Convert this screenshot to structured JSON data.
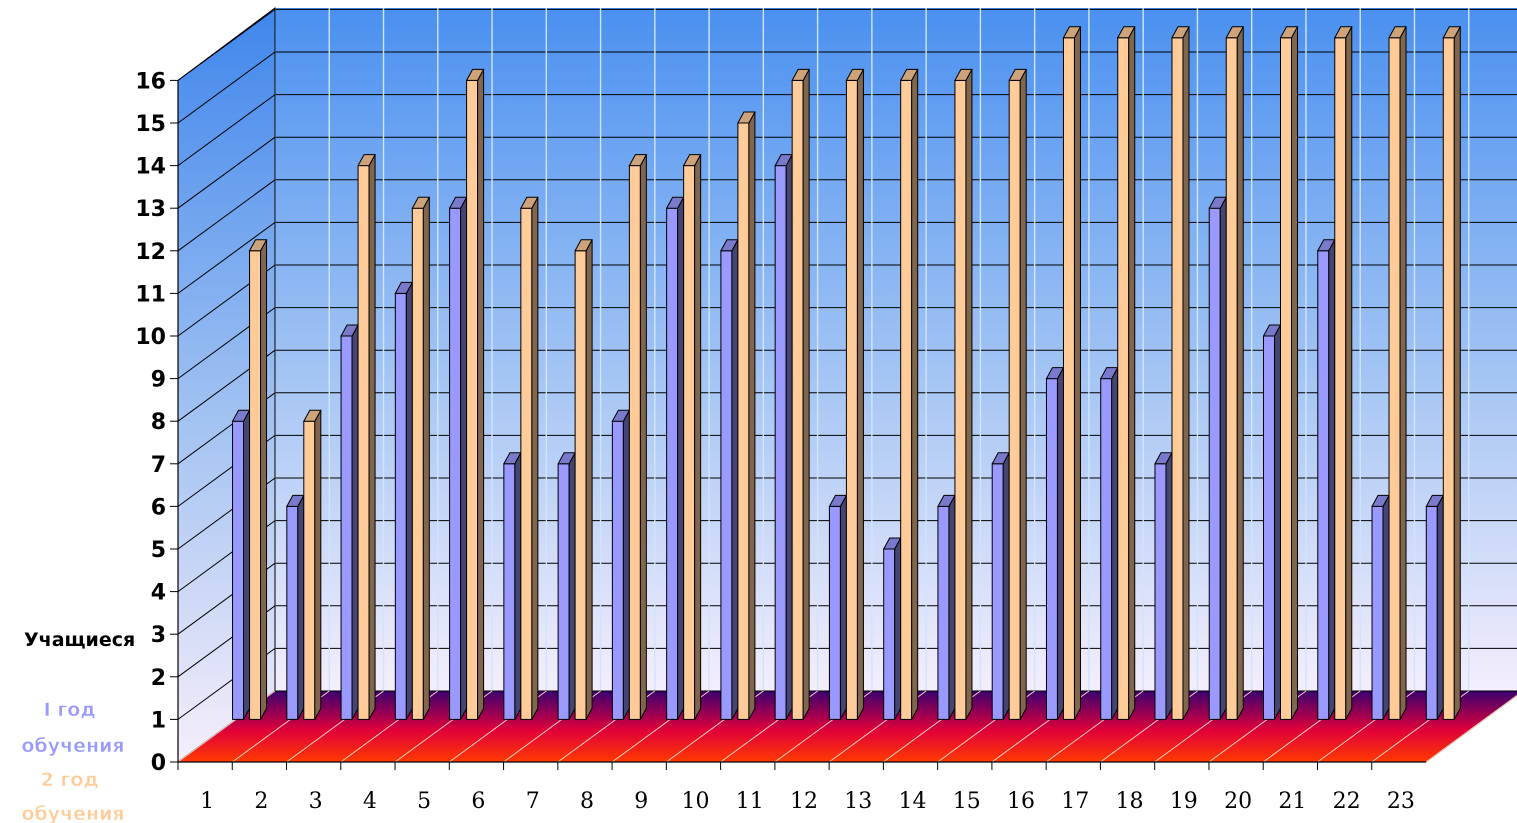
{
  "chart_data": {
    "type": "bar",
    "title": "",
    "xlabel": "",
    "ylabel": "Учащиеся",
    "categories": [
      "1",
      "2",
      "3",
      "4",
      "5",
      "6",
      "7",
      "8",
      "9",
      "10",
      "11",
      "12",
      "13",
      "14",
      "15",
      "16",
      "17",
      "18",
      "19",
      "20",
      "21",
      "22",
      "23"
    ],
    "series": [
      {
        "name": "I год обучения",
        "color": "#9999ff",
        "values": [
          7,
          5,
          9,
          10,
          12,
          6,
          6,
          7,
          12,
          11,
          13,
          5,
          4,
          5,
          6,
          8,
          8,
          6,
          12,
          9,
          11,
          5,
          5
        ]
      },
      {
        "name": "2 год обучения",
        "color": "#ffcc99",
        "values": [
          11,
          7,
          13,
          12,
          15,
          12,
          11,
          13,
          13,
          14,
          15,
          15,
          15,
          15,
          15,
          16,
          16,
          16,
          16,
          16,
          16,
          16,
          16
        ]
      }
    ],
    "ylim": [
      0,
      16
    ],
    "yticks": [
      0,
      1,
      2,
      3,
      4,
      5,
      6,
      7,
      8,
      9,
      10,
      11,
      12,
      13,
      14,
      15,
      16
    ],
    "grid": true,
    "legend_position": "bottom-left",
    "background_top_color": "#4a90f0",
    "background_bottom_color": "#f4eefc",
    "floor_color": "#ff3300",
    "floor_back_color": "#2a0066"
  }
}
